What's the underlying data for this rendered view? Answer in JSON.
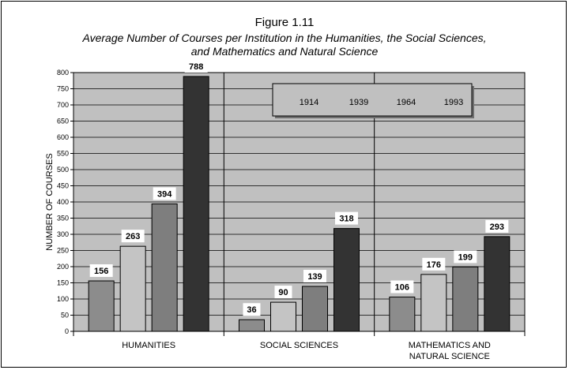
{
  "figure": {
    "number": "Figure 1.11",
    "title_line1": "Average Number of Courses per Institution in the Humanities, the Social Sciences,",
    "title_line2": "and Mathematics and Natural Science"
  },
  "chart_data": {
    "type": "bar",
    "title": "Average Number of Courses per Institution in the Humanities, the Social Sciences, and Mathematics and Natural Science",
    "ylabel": "NUMBER OF COURSES",
    "ylim": [
      0,
      800
    ],
    "ytick_step": 50,
    "grid": true,
    "legend_position": "top-right",
    "categories": [
      {
        "label_lines": [
          "HUMANITIES"
        ]
      },
      {
        "label_lines": [
          "SOCIAL SCIENCES"
        ]
      },
      {
        "label_lines": [
          "MATHEMATICS AND",
          "NATURAL SCIENCE"
        ]
      }
    ],
    "series": [
      {
        "name": "1914",
        "color": "#8c8c8c",
        "values": [
          156,
          36,
          106
        ]
      },
      {
        "name": "1939",
        "color": "#c4c4c4",
        "values": [
          263,
          90,
          176
        ]
      },
      {
        "name": "1964",
        "color": "#7e7e7e",
        "values": [
          394,
          139,
          199
        ]
      },
      {
        "name": "1993",
        "color": "#333333",
        "values": [
          788,
          318,
          293
        ]
      }
    ],
    "plot_background": "#c0c0c0"
  }
}
